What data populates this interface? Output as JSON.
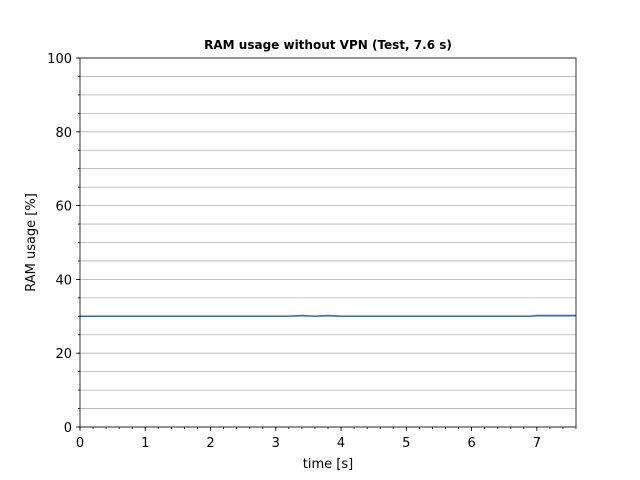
{
  "chart_data": {
    "type": "line",
    "title": "RAM usage without VPN (Test, 7.6 s)",
    "xlabel": "time [s]",
    "ylabel": "RAM usage [%]",
    "xlim": [
      0,
      7.6
    ],
    "ylim": [
      0,
      100
    ],
    "x_ticks": [
      0,
      1,
      2,
      3,
      4,
      5,
      6,
      7
    ],
    "y_ticks": [
      0,
      20,
      40,
      60,
      80,
      100
    ],
    "x_minor_step": 0.2,
    "y_minor_step": 5,
    "grid": "horizontal major and minor",
    "colors": {
      "series": "#1f77b4",
      "grid": "#b0b0b0"
    },
    "series": [
      {
        "x": [
          0,
          0.5,
          1.0,
          1.5,
          2.0,
          2.5,
          3.0,
          3.2,
          3.4,
          3.6,
          3.8,
          4.0,
          4.5,
          5.0,
          5.5,
          6.0,
          6.5,
          6.9,
          7.0,
          7.3,
          7.6
        ],
        "values": [
          30.0,
          30.0,
          30.0,
          30.0,
          30.0,
          30.0,
          30.0,
          30.0,
          30.2,
          30.0,
          30.2,
          30.0,
          30.0,
          30.0,
          30.0,
          30.0,
          30.0,
          30.0,
          30.2,
          30.2,
          30.2
        ]
      }
    ]
  }
}
